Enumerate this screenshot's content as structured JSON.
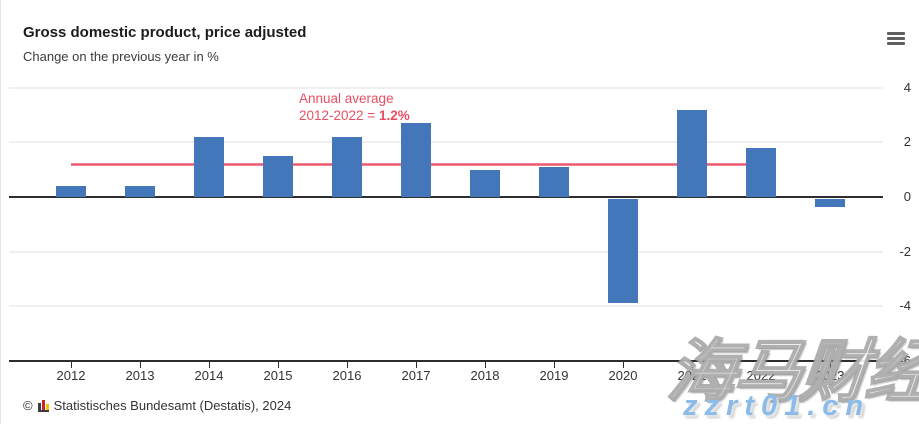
{
  "header": {
    "title": "Gross domestic product, price adjusted",
    "subtitle": "Change on the previous year in %"
  },
  "menu_icon": "hamburger-menu",
  "chart_data": {
    "type": "bar",
    "title": "Gross domestic product, price adjusted",
    "subtitle": "Change on the previous year in %",
    "categories": [
      "2012",
      "2013",
      "2014",
      "2015",
      "2016",
      "2017",
      "2018",
      "2019",
      "2020",
      "2021",
      "2022",
      "2023"
    ],
    "values": [
      0.4,
      0.4,
      2.2,
      1.5,
      2.2,
      2.7,
      1.0,
      1.1,
      -3.8,
      3.2,
      1.8,
      -0.3
    ],
    "xlabel": "",
    "ylabel": "Change on the previous year in %",
    "ylim": [
      -6,
      4
    ],
    "yticks": [
      4,
      2,
      0,
      -2,
      -4,
      -6
    ],
    "grid": true,
    "legend_position": "none",
    "bar_color": "#4377b9",
    "grid_color": "#f0f0f0",
    "axis_color": "#2e2e2e",
    "average_line": {
      "value": 1.2,
      "from_category": "2012",
      "to_category": "2022",
      "color": "#ec5a72",
      "label_line1": "Annual average",
      "label_line2_prefix": "2012-2022 = ",
      "label_value": "1.2%",
      "label_color": "#e94f63"
    }
  },
  "footer": {
    "copyright": "©",
    "logo": "destatis-mini-barchart-icon",
    "source": "Statistisches Bundesamt (Destatis), 2024"
  },
  "watermark": {
    "cjk_text": "海马财经",
    "url_text": "zzrt01.cn",
    "url_color": "#8bbbe9"
  }
}
